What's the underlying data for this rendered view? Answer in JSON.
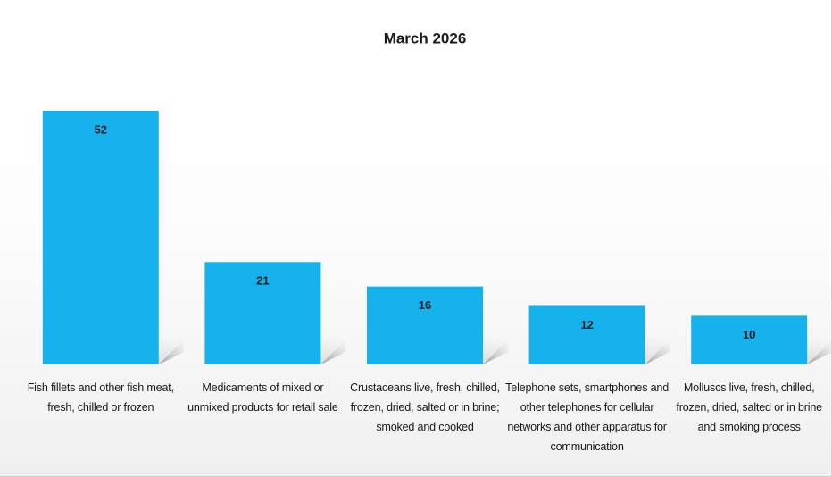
{
  "chart_data": {
    "type": "bar",
    "title": "March 2026",
    "categories": [
      "Fish fillets and other fish meat, fresh, chilled or frozen",
      "Medicaments of mixed or unmixed products for retail sale",
      "Crustaceans live, fresh, chilled, frozen, dried, salted or in brine; smoked and cooked",
      "Telephone sets, smartphones and other telephones for cellular networks and other apparatus for communication",
      "Molluscs live, fresh, chilled, frozen, dried, salted or in brine and smoking process"
    ],
    "values": [
      52,
      21,
      16,
      12,
      10
    ],
    "color": "#15b2ee"
  }
}
